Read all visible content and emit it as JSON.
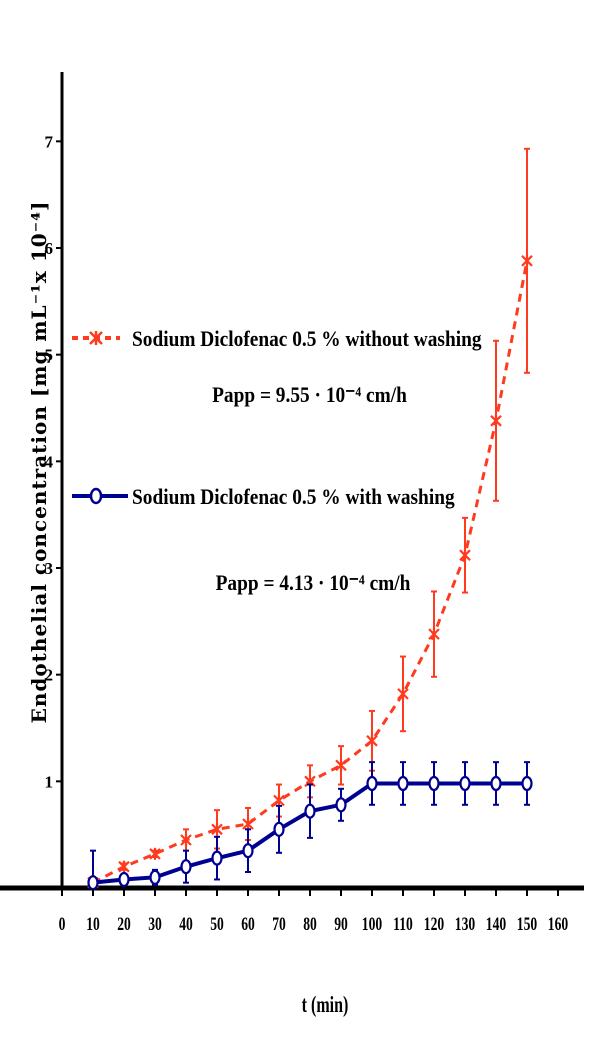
{
  "chart_data": {
    "type": "line",
    "xlabel": "t (min)",
    "ylabel": "Endothelial concentration [mg mL⁻¹x 10⁻⁴]",
    "xlim": [
      0,
      160
    ],
    "ylim": [
      0,
      7.5
    ],
    "x_ticks": [
      0,
      10,
      20,
      30,
      40,
      50,
      60,
      70,
      80,
      90,
      100,
      110,
      120,
      130,
      140,
      150,
      160
    ],
    "y_ticks": [
      1,
      2,
      3,
      4,
      5,
      6,
      7
    ],
    "grid": false,
    "legend_position": "left",
    "series": [
      {
        "name": "Sodium Diclofenac 0.5 % without washing",
        "annotation": "Papp = 9.55 · 10⁻⁴ cm/h",
        "color": "#ff3b1f",
        "line_style": "dashed",
        "marker": "x",
        "x": [
          10,
          20,
          30,
          40,
          50,
          60,
          70,
          80,
          90,
          100,
          110,
          120,
          130,
          140,
          150
        ],
        "y": [
          0.05,
          0.2,
          0.32,
          0.45,
          0.55,
          0.6,
          0.82,
          1.0,
          1.15,
          1.38,
          1.82,
          2.38,
          3.12,
          4.38,
          5.88
        ],
        "error": [
          0.02,
          0.03,
          0.03,
          0.1,
          0.18,
          0.15,
          0.15,
          0.15,
          0.18,
          0.28,
          0.35,
          0.4,
          0.35,
          0.75,
          1.05
        ]
      },
      {
        "name": "Sodium Diclofenac 0.5 % with washing",
        "annotation": "Papp = 4.13 · 10⁻⁴ cm/h",
        "color": "#000090",
        "line_style": "solid",
        "marker": "o",
        "x": [
          10,
          20,
          30,
          40,
          50,
          60,
          70,
          80,
          90,
          100,
          110,
          120,
          130,
          140,
          150
        ],
        "y": [
          0.05,
          0.08,
          0.1,
          0.2,
          0.28,
          0.35,
          0.55,
          0.72,
          0.78,
          0.98,
          0.98,
          0.98,
          0.98,
          0.98,
          0.98
        ],
        "error": [
          0.3,
          0.05,
          0.07,
          0.15,
          0.2,
          0.2,
          0.22,
          0.25,
          0.15,
          0.2,
          0.2,
          0.2,
          0.2,
          0.2,
          0.2
        ]
      }
    ]
  }
}
